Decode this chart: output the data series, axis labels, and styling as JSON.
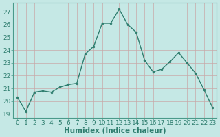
{
  "x": [
    0,
    1,
    2,
    3,
    4,
    5,
    6,
    7,
    8,
    9,
    10,
    11,
    12,
    13,
    14,
    15,
    16,
    17,
    18,
    19,
    20,
    21,
    22,
    23
  ],
  "y": [
    20.3,
    19.2,
    20.7,
    20.8,
    20.7,
    21.1,
    21.3,
    21.4,
    23.7,
    24.3,
    26.1,
    26.1,
    27.2,
    26.0,
    25.4,
    23.2,
    22.3,
    22.5,
    23.1,
    23.8,
    23.0,
    22.2,
    20.9,
    19.5
  ],
  "line_color": "#2e7d6e",
  "marker": "o",
  "markersize": 2.0,
  "linewidth": 1.0,
  "bg_color": "#c5e8e5",
  "grid_color": "#c8a8a8",
  "xlabel": "Humidex (Indice chaleur)",
  "xlabel_fontsize": 7.5,
  "ylabel_ticks": [
    19,
    20,
    21,
    22,
    23,
    24,
    25,
    26,
    27
  ],
  "ylim": [
    18.7,
    27.7
  ],
  "xlim": [
    -0.5,
    23.5
  ],
  "tick_fontsize": 6.5,
  "tick_color": "#2e7d6e",
  "spine_color": "#4a9a8a"
}
